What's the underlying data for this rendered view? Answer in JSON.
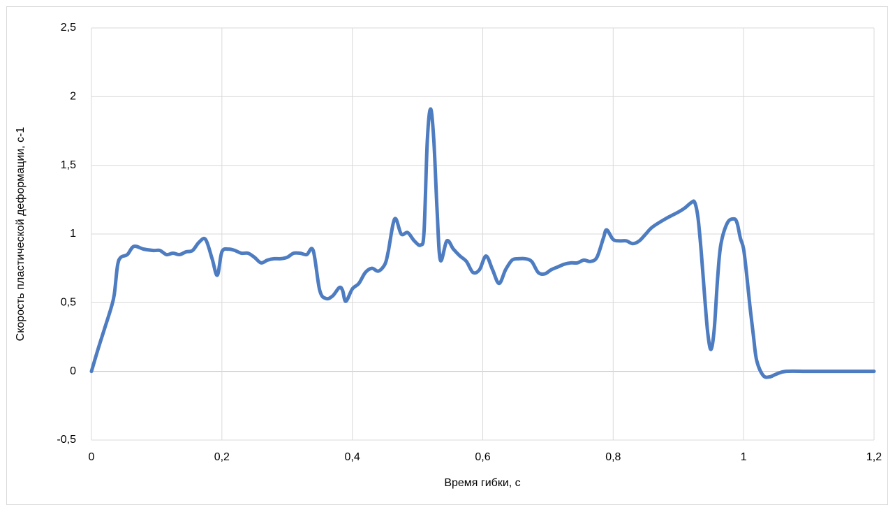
{
  "chart_data": {
    "type": "line",
    "x_label": "Время гибки, с",
    "y_label": "Скорость пластической деформации, с-1",
    "x": [
      0,
      0.01,
      0.02,
      0.03,
      0.035,
      0.04,
      0.045,
      0.055,
      0.065,
      0.08,
      0.095,
      0.105,
      0.115,
      0.125,
      0.135,
      0.145,
      0.155,
      0.165,
      0.175,
      0.185,
      0.193,
      0.2,
      0.21,
      0.22,
      0.23,
      0.24,
      0.25,
      0.26,
      0.27,
      0.28,
      0.29,
      0.3,
      0.31,
      0.32,
      0.33,
      0.34,
      0.35,
      0.36,
      0.37,
      0.38,
      0.385,
      0.39,
      0.4,
      0.41,
      0.42,
      0.43,
      0.44,
      0.45,
      0.455,
      0.465,
      0.475,
      0.485,
      0.495,
      0.505,
      0.51,
      0.515,
      0.52,
      0.525,
      0.53,
      0.535,
      0.545,
      0.555,
      0.565,
      0.575,
      0.585,
      0.595,
      0.605,
      0.615,
      0.625,
      0.635,
      0.645,
      0.655,
      0.665,
      0.675,
      0.685,
      0.695,
      0.705,
      0.715,
      0.725,
      0.735,
      0.745,
      0.755,
      0.765,
      0.775,
      0.785,
      0.79,
      0.8,
      0.81,
      0.82,
      0.83,
      0.84,
      0.85,
      0.86,
      0.88,
      0.9,
      0.91,
      0.92,
      0.925,
      0.93,
      0.935,
      0.94,
      0.945,
      0.95,
      0.955,
      0.96,
      0.965,
      0.975,
      0.985,
      0.99,
      0.995,
      1.0,
      1.005,
      1.01,
      1.015,
      1.02,
      1.03,
      1.04,
      1.05,
      1.065,
      1.1,
      1.15,
      1.2
    ],
    "series": [
      {
        "name": "Скорость пластической деформации",
        "color": "#4e7cc1",
        "values": [
          0,
          0.16,
          0.31,
          0.46,
          0.56,
          0.77,
          0.83,
          0.85,
          0.91,
          0.89,
          0.88,
          0.88,
          0.85,
          0.86,
          0.85,
          0.87,
          0.88,
          0.94,
          0.96,
          0.82,
          0.7,
          0.87,
          0.89,
          0.88,
          0.86,
          0.86,
          0.83,
          0.79,
          0.81,
          0.82,
          0.82,
          0.83,
          0.86,
          0.86,
          0.85,
          0.88,
          0.59,
          0.53,
          0.55,
          0.61,
          0.59,
          0.51,
          0.6,
          0.64,
          0.72,
          0.75,
          0.73,
          0.78,
          0.87,
          1.11,
          1.0,
          1.01,
          0.95,
          0.92,
          1.02,
          1.68,
          1.91,
          1.68,
          1.17,
          0.81,
          0.95,
          0.89,
          0.84,
          0.8,
          0.72,
          0.74,
          0.84,
          0.74,
          0.64,
          0.74,
          0.81,
          0.82,
          0.82,
          0.8,
          0.72,
          0.71,
          0.74,
          0.76,
          0.78,
          0.79,
          0.79,
          0.81,
          0.8,
          0.83,
          0.97,
          1.03,
          0.96,
          0.95,
          0.95,
          0.93,
          0.95,
          1.0,
          1.05,
          1.11,
          1.16,
          1.19,
          1.23,
          1.23,
          1.12,
          0.87,
          0.56,
          0.28,
          0.16,
          0.31,
          0.67,
          0.92,
          1.08,
          1.11,
          1.08,
          0.97,
          0.89,
          0.69,
          0.46,
          0.26,
          0.08,
          -0.03,
          -0.04,
          -0.02,
          0,
          0,
          0,
          0
        ]
      }
    ],
    "xlim": [
      0,
      1.2
    ],
    "xticks": [
      {
        "value": 0,
        "label": "0"
      },
      {
        "value": 0.2,
        "label": "0,2"
      },
      {
        "value": 0.4,
        "label": "0,4"
      },
      {
        "value": 0.6,
        "label": "0,6"
      },
      {
        "value": 0.8,
        "label": "0,8"
      },
      {
        "value": 1,
        "label": "1"
      },
      {
        "value": 1.2,
        "label": "1,2"
      }
    ],
    "ylim": [
      -0.5,
      2.5
    ],
    "yticks": [
      {
        "value": -0.5,
        "label": "-0,5"
      },
      {
        "value": 0,
        "label": "0"
      },
      {
        "value": 0.5,
        "label": "0,5"
      },
      {
        "value": 1,
        "label": "1"
      },
      {
        "value": 1.5,
        "label": "1,5"
      },
      {
        "value": 2,
        "label": "2"
      },
      {
        "value": 2.5,
        "label": "2,5"
      }
    ],
    "grid": true
  }
}
